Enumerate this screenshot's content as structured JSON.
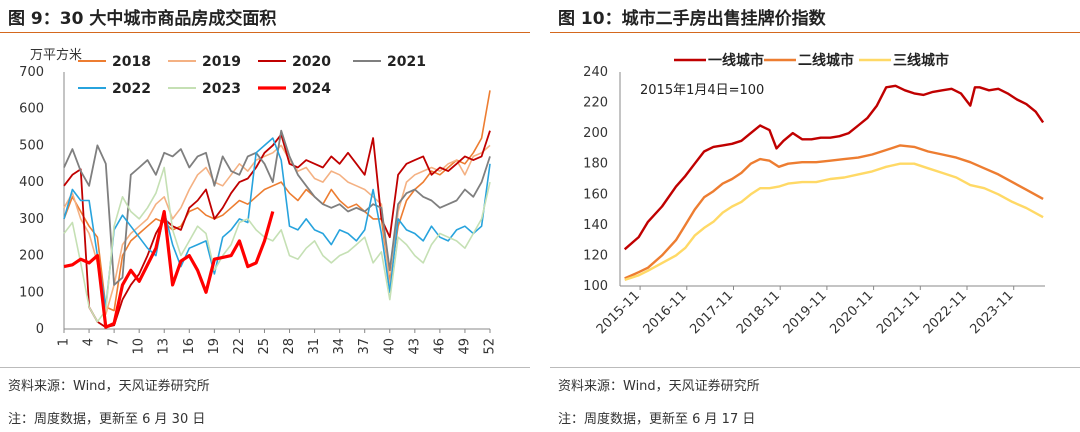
{
  "left": {
    "title": "图 9：30 大中城市商品房成交面积",
    "source": "资料来源：Wind，天风证券研究所",
    "note": "注：周度数据，更新至 6 月 30 日"
  },
  "right": {
    "title": "图 10：城市二手房出售挂牌价指数",
    "source": "资料来源：Wind，天风证券研究所",
    "note": "注：周度数据，更新至 6 月 17 日"
  },
  "chart_data": [
    {
      "type": "line",
      "ylabel": "万平方米",
      "ylim": [
        0,
        700
      ],
      "yticks": [
        0,
        100,
        200,
        300,
        400,
        500,
        600,
        700
      ],
      "xlim": [
        1,
        52
      ],
      "xticks": [
        1,
        4,
        7,
        10,
        13,
        16,
        19,
        22,
        25,
        28,
        31,
        34,
        37,
        40,
        43,
        46,
        49,
        52
      ],
      "legend_position": "top",
      "series": [
        {
          "name": "2018",
          "color": "#ed7d31",
          "width": 1.6,
          "values": [
            300,
            360,
            320,
            280,
            250,
            60,
            50,
            200,
            240,
            260,
            280,
            300,
            290,
            270,
            280,
            320,
            330,
            310,
            300,
            310,
            330,
            350,
            340,
            360,
            380,
            390,
            400,
            370,
            350,
            380,
            360,
            340,
            380,
            350,
            330,
            340,
            320,
            300,
            300,
            130,
            280,
            350,
            380,
            400,
            430,
            420,
            440,
            460,
            450,
            480,
            520,
            650
          ]
        },
        {
          "name": "2019",
          "color": "#f4b183",
          "width": 1.6,
          "values": [
            330,
            370,
            300,
            260,
            180,
            40,
            120,
            230,
            260,
            280,
            300,
            340,
            360,
            300,
            330,
            380,
            420,
            440,
            400,
            390,
            420,
            450,
            430,
            460,
            470,
            480,
            500,
            460,
            430,
            440,
            410,
            400,
            430,
            420,
            400,
            390,
            380,
            360,
            340,
            110,
            320,
            400,
            420,
            430,
            440,
            430,
            450,
            460,
            420,
            470,
            480,
            500
          ]
        },
        {
          "name": "2020",
          "color": "#c00000",
          "width": 1.8,
          "values": [
            390,
            420,
            435,
            60,
            20,
            5,
            10,
            80,
            120,
            150,
            200,
            260,
            300,
            280,
            270,
            330,
            350,
            380,
            300,
            330,
            370,
            400,
            410,
            440,
            480,
            500,
            530,
            450,
            440,
            460,
            450,
            440,
            470,
            450,
            480,
            450,
            420,
            520,
            300,
            250,
            420,
            450,
            460,
            470,
            420,
            440,
            430,
            450,
            470,
            460,
            470,
            540
          ]
        },
        {
          "name": "2021",
          "color": "#7f7f7f",
          "width": 1.8,
          "values": [
            440,
            490,
            430,
            390,
            500,
            450,
            120,
            140,
            420,
            440,
            460,
            420,
            480,
            470,
            490,
            440,
            470,
            480,
            390,
            470,
            430,
            420,
            470,
            480,
            450,
            400,
            540,
            470,
            420,
            390,
            360,
            340,
            330,
            340,
            320,
            330,
            320,
            340,
            330,
            160,
            340,
            370,
            380,
            360,
            350,
            330,
            340,
            350,
            380,
            360,
            400,
            470
          ]
        },
        {
          "name": "2022",
          "color": "#27a3dd",
          "width": 1.6,
          "values": [
            300,
            380,
            350,
            350,
            200,
            60,
            270,
            310,
            280,
            250,
            220,
            200,
            320,
            230,
            170,
            220,
            230,
            240,
            150,
            250,
            270,
            300,
            290,
            480,
            500,
            520,
            460,
            280,
            270,
            300,
            270,
            260,
            230,
            270,
            260,
            240,
            270,
            380,
            260,
            100,
            300,
            270,
            260,
            240,
            280,
            250,
            240,
            270,
            280,
            260,
            280,
            450
          ]
        },
        {
          "name": "2023",
          "color": "#c5e0b4",
          "width": 1.6,
          "values": [
            260,
            290,
            180,
            60,
            20,
            50,
            280,
            360,
            320,
            300,
            330,
            370,
            440,
            270,
            200,
            240,
            280,
            260,
            160,
            200,
            230,
            290,
            300,
            270,
            250,
            240,
            270,
            200,
            190,
            220,
            240,
            200,
            180,
            200,
            210,
            230,
            250,
            180,
            210,
            80,
            250,
            230,
            200,
            180,
            230,
            260,
            250,
            240,
            220,
            260,
            300,
            400
          ]
        },
        {
          "name": "2024",
          "color": "#ff0000",
          "width": 3.2,
          "values": [
            170,
            175,
            190,
            180,
            200,
            5,
            15,
            120,
            160,
            130,
            175,
            220,
            320,
            120,
            185,
            200,
            160,
            100,
            190,
            195,
            200,
            240,
            170,
            180,
            240,
            320
          ]
        }
      ]
    },
    {
      "type": "line",
      "annotation": "2015年1月4日=100",
      "ylim": [
        100,
        240
      ],
      "yticks": [
        100,
        120,
        140,
        160,
        180,
        200,
        220,
        240
      ],
      "xlim": [
        2015.4,
        2024.5
      ],
      "xticks": [
        2015.83,
        2016.83,
        2017.83,
        2018.83,
        2019.83,
        2020.83,
        2021.83,
        2022.83,
        2023.83
      ],
      "xtick_labels": [
        "2015-11",
        "2016-11",
        "2017-11",
        "2018-11",
        "2019-11",
        "2020-11",
        "2021-11",
        "2022-11",
        "2023-11"
      ],
      "legend_position": "top",
      "series": [
        {
          "name": "一线城市",
          "color": "#c00000",
          "x": [
            2015.5,
            2015.8,
            2016.0,
            2016.3,
            2016.6,
            2016.8,
            2017.0,
            2017.2,
            2017.4,
            2017.6,
            2017.8,
            2018.0,
            2018.2,
            2018.4,
            2018.6,
            2018.75,
            2018.9,
            2019.1,
            2019.3,
            2019.5,
            2019.7,
            2019.9,
            2020.1,
            2020.3,
            2020.5,
            2020.7,
            2020.9,
            2021.1,
            2021.3,
            2021.5,
            2021.7,
            2021.9,
            2022.1,
            2022.3,
            2022.5,
            2022.7,
            2022.9,
            2023.0,
            2023.1,
            2023.3,
            2023.5,
            2023.7,
            2023.9,
            2024.1,
            2024.3,
            2024.46
          ],
          "values": [
            124,
            132,
            142,
            152,
            165,
            172,
            180,
            188,
            191,
            192,
            193,
            195,
            200,
            205,
            202,
            190,
            195,
            200,
            196,
            196,
            197,
            197,
            198,
            200,
            205,
            210,
            218,
            230,
            231,
            228,
            226,
            225,
            227,
            228,
            229,
            226,
            218,
            230,
            230,
            228,
            229,
            226,
            222,
            219,
            214,
            207
          ]
        },
        {
          "name": "二线城市",
          "color": "#ed7d31",
          "x": [
            2015.5,
            2015.8,
            2016.0,
            2016.3,
            2016.6,
            2016.8,
            2017.0,
            2017.2,
            2017.4,
            2017.6,
            2017.8,
            2018.0,
            2018.2,
            2018.4,
            2018.6,
            2018.8,
            2019.0,
            2019.3,
            2019.6,
            2019.9,
            2020.2,
            2020.5,
            2020.8,
            2021.1,
            2021.4,
            2021.7,
            2022.0,
            2022.3,
            2022.6,
            2022.9,
            2023.2,
            2023.5,
            2023.8,
            2024.1,
            2024.46
          ],
          "values": [
            105,
            109,
            112,
            120,
            130,
            140,
            150,
            158,
            162,
            167,
            170,
            174,
            180,
            183,
            182,
            178,
            180,
            181,
            181,
            182,
            183,
            184,
            186,
            189,
            192,
            191,
            188,
            186,
            184,
            181,
            177,
            173,
            168,
            163,
            157
          ]
        },
        {
          "name": "三线城市",
          "color": "#ffd966",
          "x": [
            2015.5,
            2015.8,
            2016.0,
            2016.3,
            2016.6,
            2016.8,
            2017.0,
            2017.2,
            2017.4,
            2017.6,
            2017.8,
            2018.0,
            2018.2,
            2018.4,
            2018.6,
            2018.8,
            2019.0,
            2019.3,
            2019.6,
            2019.9,
            2020.2,
            2020.5,
            2020.8,
            2021.1,
            2021.4,
            2021.7,
            2022.0,
            2022.3,
            2022.6,
            2022.9,
            2023.2,
            2023.5,
            2023.8,
            2024.1,
            2024.46
          ],
          "values": [
            104,
            107,
            110,
            115,
            120,
            125,
            133,
            138,
            142,
            148,
            152,
            155,
            160,
            164,
            164,
            165,
            167,
            168,
            168,
            170,
            171,
            173,
            175,
            178,
            180,
            180,
            177,
            174,
            171,
            166,
            164,
            160,
            155,
            151,
            145
          ]
        }
      ]
    }
  ]
}
